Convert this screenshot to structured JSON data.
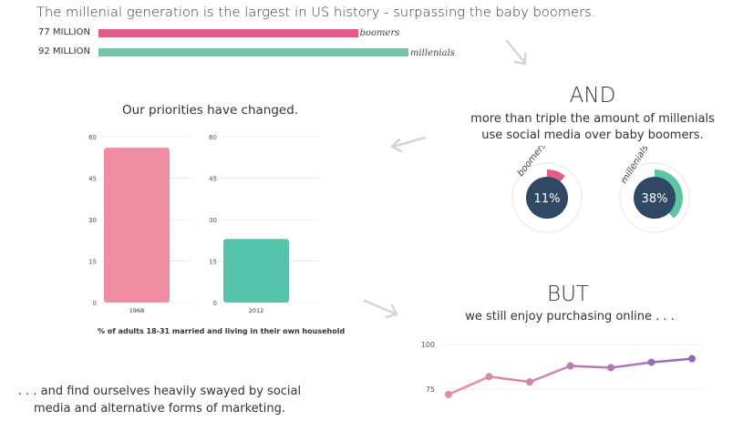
{
  "headline": "The millenial generation is the largest in US history - surpassing the baby boomers.",
  "population": [
    {
      "value_label": "77 MILLION",
      "name": "boomers",
      "value": 77,
      "color": "#e05c86"
    },
    {
      "value_label": "92 MILLION",
      "name": "millenials",
      "value": 92,
      "color": "#6cc9a7"
    }
  ],
  "and_section": {
    "heading": "AND",
    "line1": "more than triple the amount of millenials",
    "line2": "use social media over baby boomers."
  },
  "donuts": [
    {
      "name": "boomers",
      "value": 11,
      "label": "11%",
      "color": "#e35c85"
    },
    {
      "name": "millenials",
      "value": 38,
      "label": "38%",
      "color": "#5ec5a3"
    }
  ],
  "priorities": {
    "title": "Our priorities have changed.",
    "caption": "% of adults 18-31 married and living in their own household"
  },
  "but_section": {
    "heading": "BUT",
    "subtext": "we still enjoy purchasing online . . ."
  },
  "bottom_text": {
    "line1": ". . . and find ourselves heavily swayed by social",
    "line2": "media and alternative forms of marketing."
  },
  "chart_data": [
    {
      "type": "bar",
      "categories": [
        "boomers",
        "millenials"
      ],
      "values": [
        77,
        92
      ],
      "value_labels": [
        "77 MILLION",
        "92 MILLION"
      ]
    },
    {
      "type": "pie",
      "categories": [
        "boomers",
        "millenials"
      ],
      "values": [
        11,
        38
      ],
      "value_labels": [
        "11%",
        "38%"
      ]
    },
    {
      "type": "bar",
      "panels": [
        {
          "category": "1968",
          "value": 56,
          "color": "#f08ca2"
        },
        {
          "category": "2012",
          "value": 23,
          "color": "#55c4ab"
        }
      ],
      "ylim": [
        0,
        60
      ],
      "yticks": [
        0,
        15,
        30,
        45,
        60
      ],
      "grid": true,
      "caption": "% of adults 18-31 married and living in their own household"
    },
    {
      "type": "line",
      "x": [
        1,
        2,
        3,
        4,
        5,
        6,
        7
      ],
      "values": [
        72,
        82,
        79,
        88,
        87,
        90,
        92
      ],
      "yticks": [
        75,
        100
      ],
      "ylim_visible": [
        70,
        100
      ],
      "grid": true,
      "colors": [
        "#e68aa9",
        "#dd86ac",
        "#d082b0",
        "#bf7ab3",
        "#b274b7",
        "#9d6ab9",
        "#8e64bc"
      ]
    }
  ]
}
